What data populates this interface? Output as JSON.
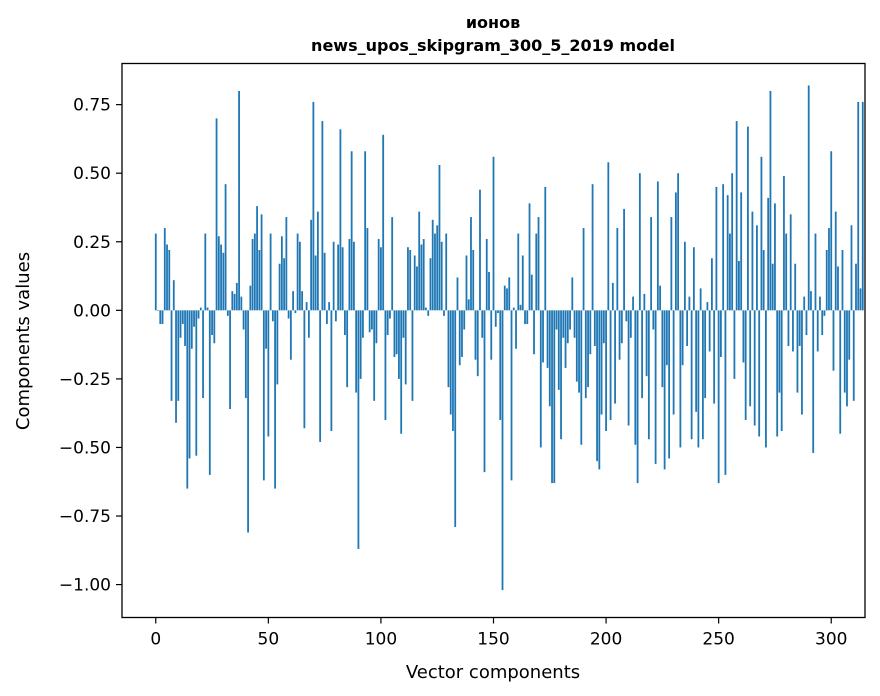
{
  "chart_data": {
    "type": "bar",
    "title": "ионов",
    "subtitle": "news_upos_skipgram_300_5_2019 model",
    "xlabel": "Vector components",
    "ylabel": "Components values",
    "xlim": [
      -15,
      315
    ],
    "ylim": [
      -1.12,
      0.9
    ],
    "x_ticks": [
      0,
      50,
      100,
      150,
      200,
      250,
      300
    ],
    "x_tick_labels": [
      "0",
      "50",
      "100",
      "150",
      "200",
      "250",
      "300"
    ],
    "y_ticks": [
      0.75,
      0.5,
      0.25,
      0.0,
      -0.25,
      -0.5,
      -0.75,
      -1.0
    ],
    "y_tick_labels": [
      "0.75",
      "0.50",
      "0.25",
      "0.00",
      "−0.25",
      "−0.50",
      "−0.75",
      "−1.00"
    ],
    "bar_color": "#1f77b4",
    "grid": false,
    "values": [
      0.28,
      0.0,
      -0.05,
      -0.05,
      0.3,
      0.24,
      0.22,
      -0.33,
      0.11,
      -0.41,
      -0.33,
      -0.1,
      -0.05,
      -0.13,
      -0.65,
      -0.54,
      -0.14,
      -0.06,
      -0.53,
      -0.03,
      0.01,
      -0.32,
      0.28,
      0.01,
      -0.6,
      -0.09,
      -0.12,
      0.7,
      0.27,
      0.24,
      0.21,
      0.46,
      -0.02,
      -0.36,
      0.07,
      0.06,
      0.1,
      0.8,
      0.05,
      -0.07,
      -0.32,
      -0.81,
      0.09,
      0.26,
      0.28,
      0.38,
      0.22,
      0.35,
      -0.62,
      -0.14,
      -0.46,
      0.28,
      -0.04,
      -0.65,
      -0.27,
      0.17,
      0.27,
      0.19,
      0.34,
      -0.03,
      -0.18,
      0.07,
      -0.01,
      0.28,
      0.25,
      0.07,
      -0.43,
      0.03,
      -0.1,
      0.33,
      0.76,
      0.2,
      0.36,
      -0.48,
      0.69,
      0.21,
      -0.05,
      0.03,
      -0.44,
      0.25,
      -0.04,
      0.24,
      0.66,
      0.23,
      -0.09,
      -0.28,
      0.26,
      0.58,
      0.25,
      -0.3,
      -0.87,
      -0.25,
      -0.1,
      0.58,
      0.3,
      -0.08,
      -0.07,
      -0.33,
      -0.12,
      0.26,
      0.23,
      0.64,
      -0.4,
      -0.09,
      -0.03,
      0.34,
      -0.17,
      -0.16,
      -0.25,
      -0.45,
      -0.1,
      -0.27,
      0.23,
      0.22,
      -0.33,
      0.2,
      0.16,
      0.36,
      0.24,
      0.26,
      0.01,
      -0.02,
      0.19,
      0.33,
      0.28,
      0.31,
      0.53,
      0.25,
      -0.02,
      0.28,
      -0.28,
      -0.38,
      -0.44,
      -0.79,
      0.12,
      -0.2,
      -0.17,
      -0.07,
      0.2,
      0.04,
      0.34,
      0.22,
      -0.18,
      -0.24,
      0.44,
      -0.1,
      -0.59,
      0.26,
      0.14,
      -0.18,
      0.56,
      -0.06,
      -0.01,
      -0.4,
      -1.02,
      0.09,
      0.08,
      0.12,
      -0.62,
      0.01,
      -0.14,
      0.28,
      0.02,
      0.2,
      -0.05,
      -0.05,
      0.39,
      0.13,
      -0.16,
      0.28,
      0.34,
      -0.5,
      -0.19,
      0.45,
      -0.21,
      -0.35,
      -0.63,
      -0.63,
      -0.07,
      -0.29,
      -0.47,
      -0.1,
      -0.21,
      -0.12,
      -0.07,
      0.12,
      -0.1,
      -0.26,
      -0.3,
      -0.49,
      0.3,
      -0.32,
      -0.28,
      -0.16,
      0.46,
      -0.13,
      -0.55,
      -0.58,
      -0.38,
      -0.12,
      -0.44,
      0.54,
      -0.4,
      0.1,
      -0.34,
      0.3,
      -0.18,
      -0.12,
      0.37,
      -0.04,
      -0.42,
      -0.1,
      0.05,
      -0.49,
      -0.63,
      0.5,
      -0.32,
      0.06,
      -0.24,
      -0.47,
      0.34,
      -0.07,
      -0.56,
      0.47,
      0.09,
      -0.28,
      -0.58,
      -0.2,
      -0.54,
      0.34,
      -0.38,
      0.43,
      0.5,
      -0.5,
      -0.2,
      0.25,
      -0.13,
      0.05,
      -0.47,
      0.23,
      -0.37,
      -0.5,
      0.08,
      -0.47,
      -0.32,
      0.03,
      -0.15,
      0.19,
      -0.34,
      0.45,
      -0.63,
      -0.17,
      0.46,
      -0.6,
      0.42,
      0.28,
      0.5,
      -0.25,
      0.69,
      0.18,
      0.43,
      -0.19,
      -0.4,
      0.67,
      -0.35,
      0.36,
      -0.42,
      0.31,
      -0.46,
      0.56,
      0.22,
      -0.5,
      0.41,
      0.8,
      0.17,
      0.39,
      -0.46,
      -0.3,
      -0.44,
      0.49,
      0.28,
      -0.13,
      0.35,
      -0.15,
      0.17,
      -0.3,
      -0.13,
      -0.38,
      0.05,
      -0.09,
      0.82,
      0.07,
      -0.52,
      0.28,
      -0.15,
      0.05,
      -0.09,
      -0.02,
      0.22,
      0.3,
      0.58,
      -0.22,
      0.36,
      0.16,
      -0.45,
      0.22,
      -0.3,
      -0.35,
      -0.18,
      0.31,
      -0.33,
      0.17,
      0.76,
      0.08,
      0.76
    ]
  }
}
